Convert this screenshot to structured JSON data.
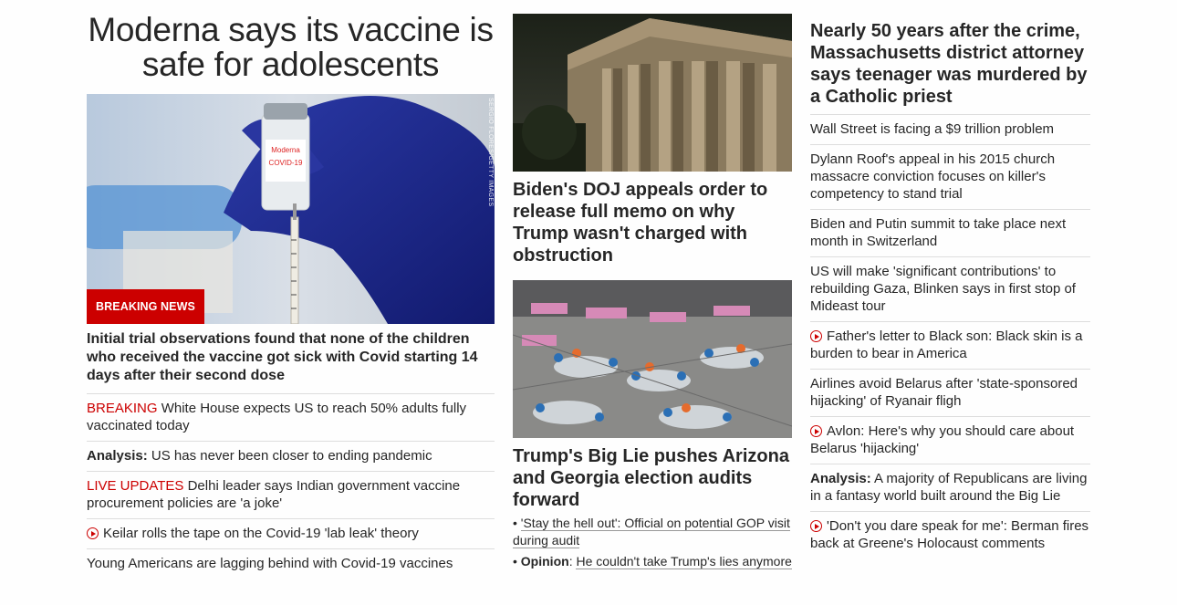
{
  "main": {
    "headline": "Moderna says its vaccine is safe for adolescents",
    "image_credit": "SERGIO FLORES/GETTY IMAGES",
    "badge": "BREAKING NEWS",
    "summary": "Initial trial observations found that none of the children who received the vaccine got sick with Covid starting 14 days after their second dose",
    "items": [
      {
        "kicker": "BREAKING",
        "text": "White House expects US to reach 50% adults fully vaccinated today"
      },
      {
        "kicker": "Analysis:",
        "text": "US has never been closer to ending pandemic"
      },
      {
        "kicker": "LIVE UPDATES",
        "text": "Delhi leader says Indian government vaccine procurement policies are 'a joke'"
      },
      {
        "text": "Keilar rolls the tape on the Covid-19 'lab leak' theory"
      },
      {
        "text": "Young Americans are lagging behind with Covid-19 vaccines"
      }
    ]
  },
  "middle": {
    "story1": {
      "headline": "Biden's DOJ appeals order to release full memo on why Trump wasn't charged with obstruction"
    },
    "story2": {
      "headline": "Trump's Big Lie pushes Arizona and Georgia election audits forward",
      "bullets": [
        {
          "text": "'Stay the hell out': Official on potential GOP visit during audit"
        },
        {
          "label": "Opinion",
          "text": "He couldn't take Trump's lies anymore"
        }
      ]
    }
  },
  "right": {
    "headline": "Nearly 50 years after the crime, Massachusetts district attorney says teenager was murdered by a Catholic priest",
    "items": [
      {
        "text": "Wall Street is facing a $9 trillion problem"
      },
      {
        "text": "Dylann Roof's appeal in his 2015 church massacre conviction focuses on killer's competency to stand trial"
      },
      {
        "text": "Biden and Putin summit to take place next month in Switzerland"
      },
      {
        "text": "US will make 'significant contributions' to rebuilding Gaza, Blinken says in first stop of Mideast tour"
      },
      {
        "text": "Father's letter to Black son: Black skin is a burden to bear in America"
      },
      {
        "text": "Airlines avoid Belarus after 'state-sponsored hijacking' of Ryanair fligh"
      },
      {
        "text": "Avlon: Here's why you should care about Belarus 'hijacking'"
      },
      {
        "kicker": "Analysis:",
        "text": "A majority of Republicans are living in a fantasy world built around the Big Lie"
      },
      {
        "text": "'Don't you dare speak for me': Berman fires back at Greene's Holocaust comments"
      }
    ]
  },
  "colors": {
    "accent": "#cc0000",
    "text": "#262626",
    "divider": "#dddddd"
  },
  "icons": {
    "video": "play-circle-icon"
  }
}
